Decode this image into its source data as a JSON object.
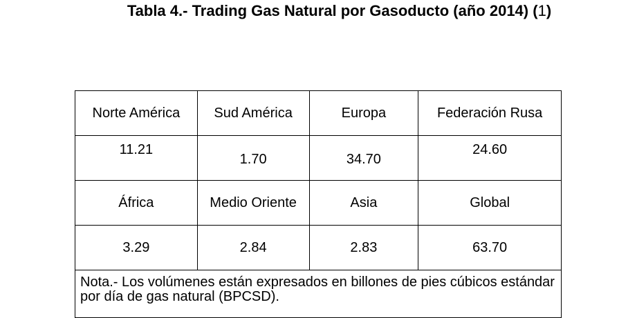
{
  "title": {
    "main": "Tabla 4.- Trading Gas Natural por Gasoducto (año 2014) (",
    "number": "1",
    "close": ")"
  },
  "table": {
    "row1_headers": [
      "Norte América",
      "Sud América",
      "Europa",
      "Federación Rusa"
    ],
    "row1_values": [
      "11.21",
      "1.70",
      "34.70",
      "24.60"
    ],
    "row2_headers": [
      "África",
      "Medio Oriente",
      "Asia",
      "Global"
    ],
    "row2_values": [
      "3.29",
      "2.84",
      "2.83",
      "63.70"
    ],
    "note": "Nota.- Los volúmenes están expresados en billones de pies cúbicos estándar por día de gas natural (BPCSD)."
  }
}
